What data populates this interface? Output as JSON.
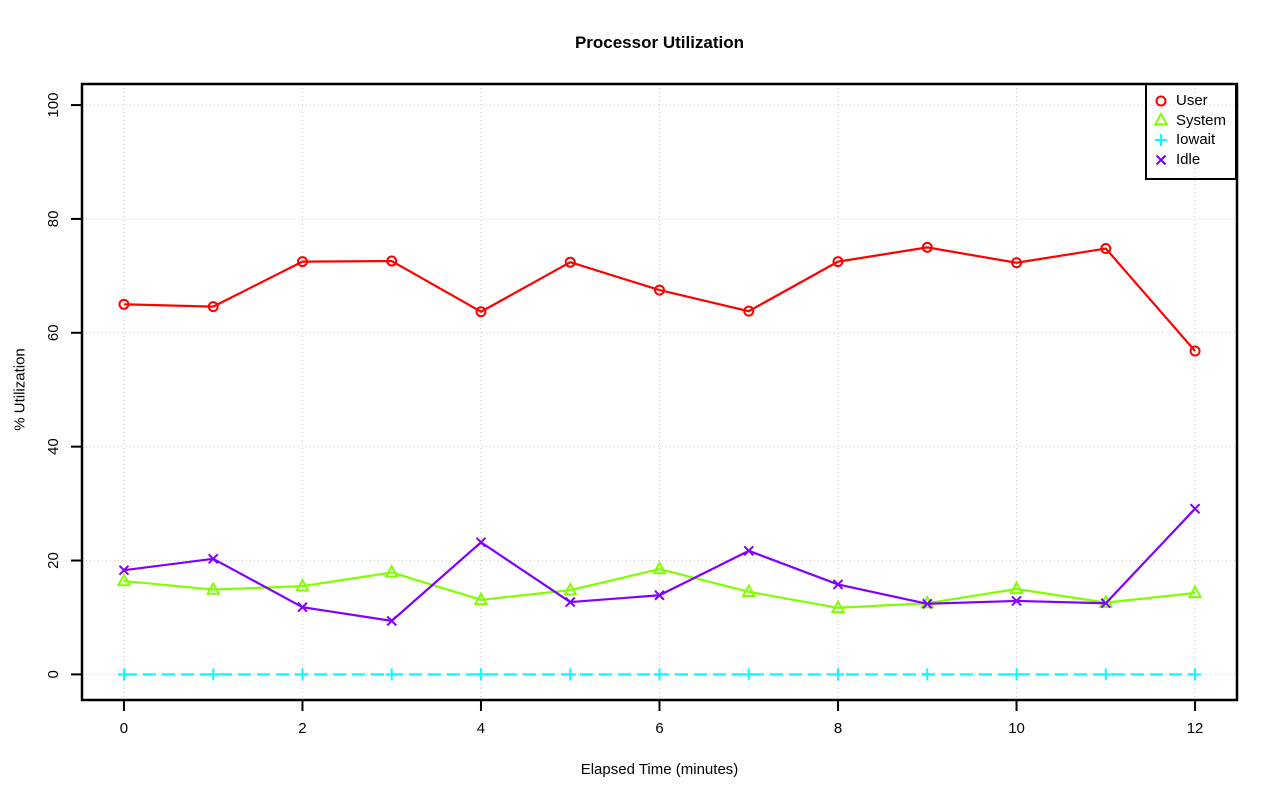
{
  "chart_data": {
    "type": "line",
    "title": "Processor Utilization",
    "xlabel": "Elapsed Time (minutes)",
    "ylabel": "% Utilization",
    "x": [
      0,
      1,
      2,
      3,
      4,
      5,
      6,
      7,
      8,
      9,
      10,
      11,
      12
    ],
    "series": [
      {
        "name": "User",
        "color": "#FF0000",
        "marker": "circle",
        "line": "solid",
        "values": [
          65.0,
          64.6,
          72.5,
          72.6,
          63.7,
          72.4,
          67.5,
          63.8,
          72.5,
          75.0,
          72.3,
          74.8,
          56.8
        ]
      },
      {
        "name": "System",
        "color": "#80FF00",
        "marker": "triangle",
        "line": "solid",
        "values": [
          16.4,
          14.9,
          15.5,
          17.9,
          13.1,
          14.8,
          18.5,
          14.5,
          11.7,
          12.5,
          15.0,
          12.6,
          14.3
        ]
      },
      {
        "name": "Iowait",
        "color": "#00FFFF",
        "marker": "plus",
        "line": "longdash",
        "values": [
          0,
          0,
          0,
          0,
          0,
          0,
          0,
          0,
          0,
          0,
          0,
          0,
          0
        ]
      },
      {
        "name": "Idle",
        "color": "#8000FF",
        "marker": "x",
        "line": "solid",
        "values": [
          18.3,
          20.3,
          11.8,
          9.4,
          23.2,
          12.7,
          13.9,
          21.7,
          15.8,
          12.4,
          12.9,
          12.5,
          29.1
        ]
      }
    ],
    "x_ticks": [
      0,
      2,
      4,
      6,
      8,
      10,
      12
    ],
    "y_ticks": [
      0,
      20,
      40,
      60,
      80,
      100
    ],
    "xlim": [
      -0.47,
      12.47
    ],
    "ylim": [
      -4.5,
      103.7
    ],
    "grid": true,
    "grid_color": "#C9C9C9",
    "legend_position": "topright",
    "background": "#FFFFFF",
    "axis_color": "#000000"
  }
}
